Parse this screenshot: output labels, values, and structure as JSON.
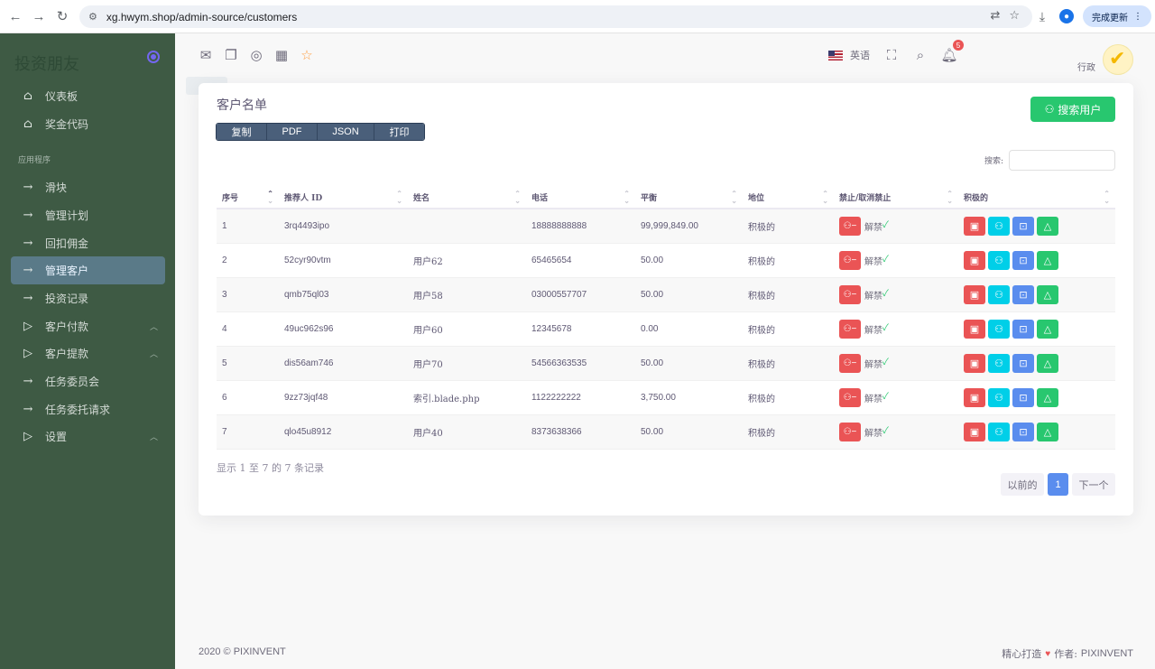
{
  "browser": {
    "url": "xg.hwym.shop/admin-source/customers",
    "update_label": "完成更新"
  },
  "sidebar": {
    "brand": "投资朋友",
    "section_label": "应用程序",
    "items_top": [
      {
        "label": "仪表板",
        "icon": "home-icon"
      },
      {
        "label": "奖金代码",
        "icon": "home-icon"
      }
    ],
    "items": [
      {
        "label": "滑块",
        "icon": "arrow-right-icon"
      },
      {
        "label": "管理计划",
        "icon": "arrow-right-icon"
      },
      {
        "label": "回扣佣金",
        "icon": "arrow-right-icon"
      },
      {
        "label": "管理客户",
        "icon": "arrow-right-icon",
        "active": true
      },
      {
        "label": "投资记录",
        "icon": "arrow-right-icon"
      },
      {
        "label": "客户付款",
        "icon": "triangle-right-icon",
        "expandable": true
      },
      {
        "label": "客户提款",
        "icon": "triangle-right-icon",
        "expandable": true
      },
      {
        "label": "任务委员会",
        "icon": "arrow-right-icon"
      },
      {
        "label": "任务委托请求",
        "icon": "arrow-right-icon"
      },
      {
        "label": "设置",
        "icon": "triangle-right-icon",
        "expandable": true
      }
    ]
  },
  "topbar": {
    "language": "英语",
    "notification_count": "5",
    "user_role": "行政"
  },
  "card": {
    "title": "客户名单",
    "search_user_label": "搜索用户",
    "export_buttons": [
      "复制",
      "PDF",
      "JSON",
      "打印"
    ],
    "search_label": "搜索:",
    "columns": [
      "序号",
      "推荐人 ID",
      "姓名",
      "电话",
      "平衡",
      "地位",
      "禁止/取消禁止",
      "积极的"
    ],
    "unban_label": "解禁",
    "rows": [
      {
        "no": "1",
        "ref": "3rq4493ipo",
        "name": "",
        "phone": "18888888888",
        "balance": "99,999,849.00",
        "status": "积极的"
      },
      {
        "no": "2",
        "ref": "52cyr90vtm",
        "name": "用户62",
        "phone": "65465654",
        "balance": "50.00",
        "status": "积极的"
      },
      {
        "no": "3",
        "ref": "qmb75ql03",
        "name": "用户58",
        "phone": "03000557707",
        "balance": "50.00",
        "status": "积极的"
      },
      {
        "no": "4",
        "ref": "49uc962s96",
        "name": "用户60",
        "phone": "12345678",
        "balance": "0.00",
        "status": "积极的"
      },
      {
        "no": "5",
        "ref": "dis56am746",
        "name": "用户70",
        "phone": "54566363535",
        "balance": "50.00",
        "status": "积极的"
      },
      {
        "no": "6",
        "ref": "9zz73jqf48",
        "name": "索引.blade.php",
        "phone": "1122222222",
        "balance": "3,750.00",
        "status": "积极的"
      },
      {
        "no": "7",
        "ref": "qlo45u8912",
        "name": "用户40",
        "phone": "8373638366",
        "balance": "50.00",
        "status": "积极的"
      }
    ],
    "info_text": "显示 1 至 7 的 7 条记录",
    "pagination": {
      "prev": "以前的",
      "current": "1",
      "next": "下一个"
    }
  },
  "footer": {
    "left": "2020 © PIXINVENT",
    "made_with": "精心打造",
    "by": "作者:",
    "author": "PIXINVENT"
  },
  "colors": {
    "sidebar_bg": "#3e5a44",
    "primary": "#5a8dee",
    "success": "#28c76f",
    "danger": "#ea5455",
    "info": "#00cfe8"
  }
}
